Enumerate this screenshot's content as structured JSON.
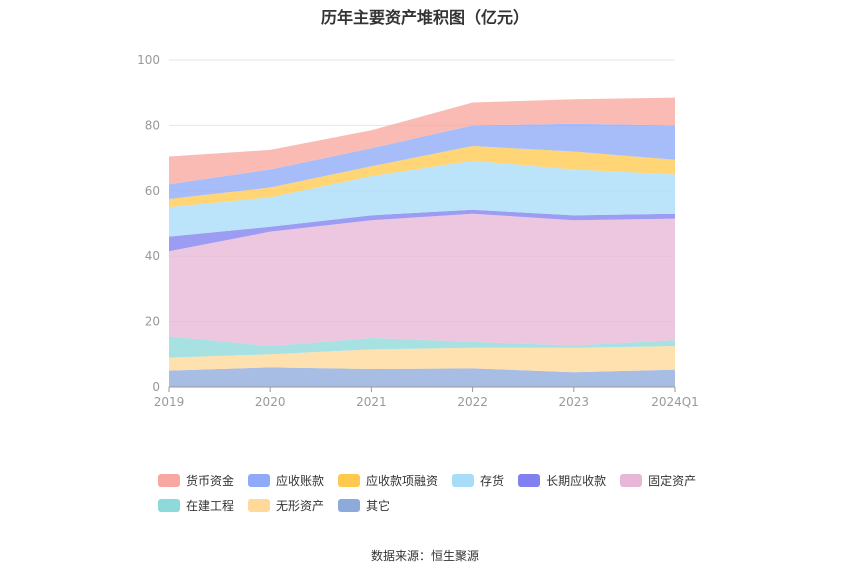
{
  "chart_data": {
    "type": "area",
    "stacked": true,
    "title": "历年主要资产堆积图（亿元）",
    "categories": [
      "2019",
      "2020",
      "2021",
      "2022",
      "2023",
      "2024Q1"
    ],
    "ylim": [
      0,
      100
    ],
    "yticks": [
      "0",
      "20",
      "40",
      "60",
      "80",
      "100"
    ],
    "grid": true,
    "legend_position": "bottom",
    "series": [
      {
        "name": "其它",
        "color": "#8eaadb",
        "values": [
          5,
          6,
          5.5,
          5.7,
          4.5,
          5.3
        ]
      },
      {
        "name": "无形资产",
        "color": "#ffd89a",
        "values": [
          4,
          4,
          6,
          6.3,
          7.5,
          7.2
        ]
      },
      {
        "name": "在建工程",
        "color": "#8ed9d9",
        "values": [
          6.5,
          2.5,
          3.5,
          1.8,
          0.7,
          1.8
        ]
      },
      {
        "name": "固定资产",
        "color": "#e8b7d7",
        "values": [
          26,
          35,
          36,
          39.2,
          38.3,
          37.2
        ]
      },
      {
        "name": "长期应收款",
        "color": "#8080f0",
        "values": [
          4.5,
          1.5,
          1.5,
          1.2,
          1.5,
          1.5
        ]
      },
      {
        "name": "存货",
        "color": "#a8ddf8",
        "values": [
          9,
          9,
          12,
          15,
          14,
          12
        ]
      },
      {
        "name": "应收款项融资",
        "color": "#ffc950",
        "values": [
          2.5,
          3,
          3,
          4.5,
          5.5,
          4.5
        ]
      },
      {
        "name": "应收账款",
        "color": "#8eaaf8",
        "values": [
          4.5,
          5.5,
          5.5,
          6.3,
          8.5,
          10.5
        ]
      },
      {
        "name": "货币资金",
        "color": "#f8a8a0",
        "values": [
          8.5,
          6,
          5.5,
          7,
          7.5,
          8.5
        ]
      }
    ]
  },
  "legend": [
    {
      "label": "货币资金",
      "color": "#f8a8a0"
    },
    {
      "label": "应收账款",
      "color": "#8eaaf8"
    },
    {
      "label": "应收款项融资",
      "color": "#ffc950"
    },
    {
      "label": "存货",
      "color": "#a8ddf8"
    },
    {
      "label": "长期应收款",
      "color": "#8080f0"
    },
    {
      "label": "固定资产",
      "color": "#e8b7d7"
    },
    {
      "label": "在建工程",
      "color": "#8ed9d9"
    },
    {
      "label": "无形资产",
      "color": "#ffd89a"
    },
    {
      "label": "其它",
      "color": "#8eaadb"
    }
  ],
  "source": "数据来源：恒生聚源"
}
